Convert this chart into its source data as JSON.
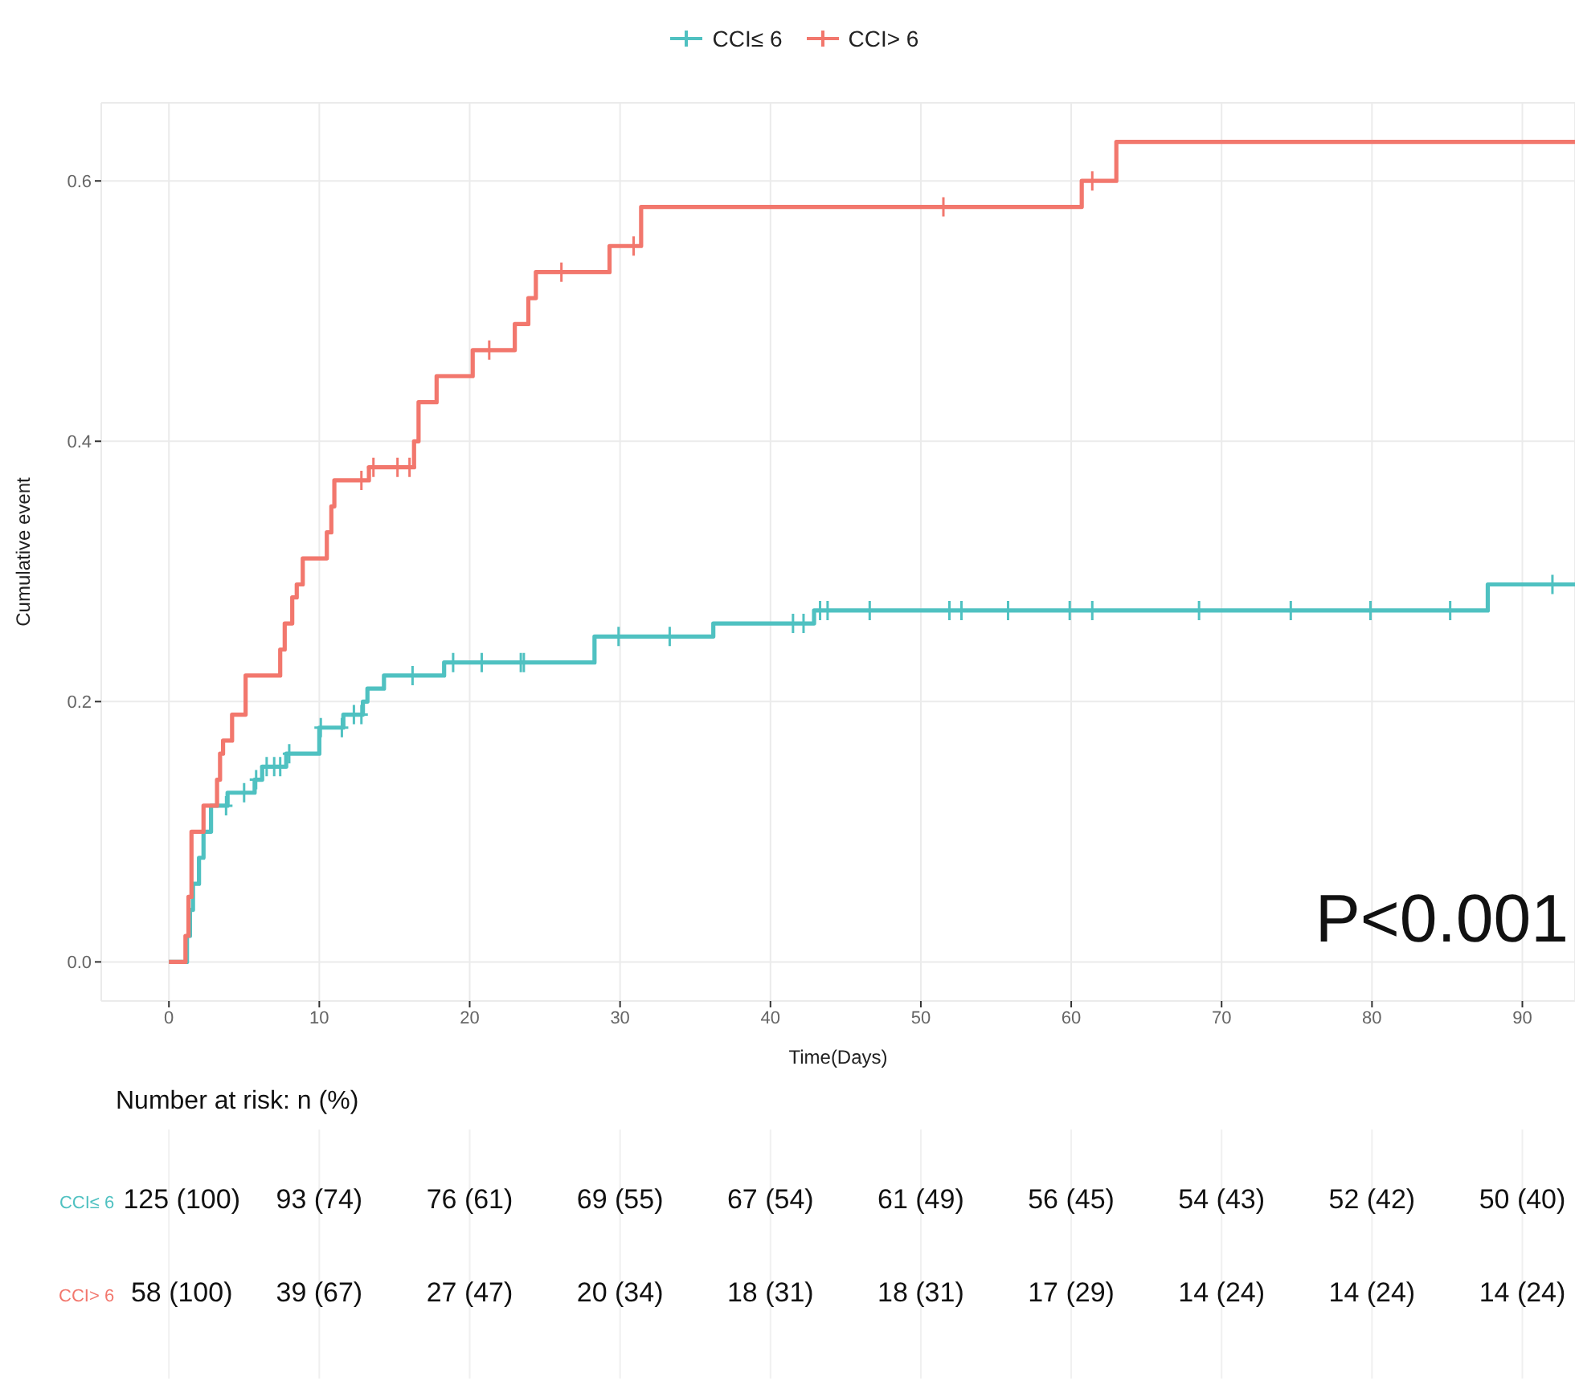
{
  "chart_data": {
    "type": "step",
    "xlabel": "Time(Days)",
    "ylabel": "Cumulative event",
    "xlim": [
      -4.5,
      93.5
    ],
    "xticks": [
      0,
      10,
      20,
      30,
      40,
      50,
      60,
      70,
      80,
      90
    ],
    "ylim": [
      -0.03,
      0.66
    ],
    "yticks": [
      {
        "value": 0,
        "label": "0.0"
      },
      0.2,
      0.4,
      0.6
    ],
    "grid": true,
    "legend": "top",
    "line_style": "solid",
    "series": [
      {
        "name": "CCI≤ 6",
        "color": "#4fc1c1",
        "x": [
          0,
          1.2,
          1.4,
          1.6,
          2.0,
          2.3,
          2.8,
          3.9,
          5.7,
          6.2,
          7.8,
          10.0,
          11.6,
          12.9,
          13.2,
          14.3,
          18.3,
          28.3,
          36.2,
          42.9,
          87.7,
          93.5
        ],
        "values": [
          0,
          0.02,
          0.04,
          0.06,
          0.08,
          0.1,
          0.12,
          0.13,
          0.14,
          0.15,
          0.16,
          0.18,
          0.19,
          0.2,
          0.21,
          0.22,
          0.23,
          0.25,
          0.26,
          0.27,
          0.29,
          0.29
        ]
      },
      {
        "name": "CCI> 6",
        "color": "#f2776d",
        "x": [
          0,
          1.1,
          1.3,
          1.5,
          2.3,
          3.2,
          3.4,
          3.6,
          4.2,
          5.1,
          7.4,
          7.7,
          8.2,
          8.5,
          8.9,
          10.5,
          10.8,
          11.0,
          13.3,
          16.3,
          16.6,
          17.8,
          20.2,
          23.0,
          23.9,
          24.4,
          29.3,
          31.4,
          60.7,
          63.0,
          93.5
        ],
        "values": [
          0,
          0.02,
          0.05,
          0.1,
          0.12,
          0.14,
          0.16,
          0.17,
          0.19,
          0.22,
          0.24,
          0.26,
          0.28,
          0.29,
          0.31,
          0.33,
          0.35,
          0.37,
          0.38,
          0.4,
          0.43,
          0.45,
          0.47,
          0.49,
          0.51,
          0.53,
          0.55,
          0.58,
          0.6,
          0.63,
          0.63
        ]
      },
      {
        "type": "scatter",
        "marker": "cross",
        "color": "#4fc1c1",
        "x": [
          3.8,
          5.0,
          5.8,
          6.5,
          7.0,
          7.4,
          8.0,
          10.1,
          11.5,
          12.3,
          12.8,
          16.2,
          18.9,
          20.8,
          23.4,
          23.6,
          29.9,
          33.3,
          41.5,
          42.2,
          43.3,
          43.8,
          46.6,
          51.9,
          52.7,
          55.8,
          59.9,
          61.4,
          68.5,
          74.6,
          79.9,
          85.2,
          92.0
        ],
        "values": [
          0.12,
          0.13,
          0.14,
          0.15,
          0.15,
          0.15,
          0.16,
          0.18,
          0.18,
          0.19,
          0.19,
          0.22,
          0.23,
          0.23,
          0.23,
          0.23,
          0.25,
          0.25,
          0.26,
          0.26,
          0.27,
          0.27,
          0.27,
          0.27,
          0.27,
          0.27,
          0.27,
          0.27,
          0.27,
          0.27,
          0.27,
          0.27,
          0.29
        ]
      },
      {
        "type": "scatter",
        "marker": "cross",
        "color": "#f2776d",
        "x": [
          12.8,
          13.6,
          15.2,
          16.0,
          21.3,
          26.1,
          30.9,
          51.5,
          61.4
        ],
        "values": [
          0.37,
          0.38,
          0.38,
          0.38,
          0.47,
          0.53,
          0.55,
          0.58,
          0.6
        ]
      }
    ],
    "annotations": [
      "P<0.001",
      "Number at risk: n (%)",
      "CCI≤ 6",
      "125 (100)",
      "93 (74)",
      "76 (61)",
      "69 (55)",
      "67 (54)",
      "61 (49)",
      "56 (45)",
      "54 (43)",
      "52 (42)",
      "50 (40)",
      "CCI> 6",
      "58 (100)",
      "39 (67)",
      "27 (47)",
      "20 (34)",
      "18 (31)",
      "18 (31)",
      "17 (29)",
      "14 (24)",
      "14 (24)",
      "14 (24)"
    ]
  }
}
